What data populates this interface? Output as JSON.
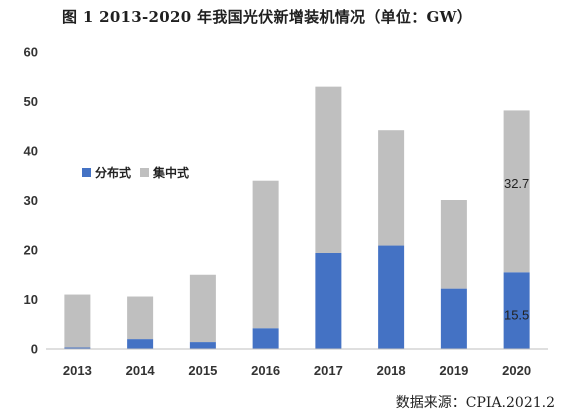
{
  "chart_data": {
    "type": "bar",
    "stacked": true,
    "title": "图 1 2013-2020 年我国光伏新增装机情况（单位：GW）",
    "xlabel": "",
    "ylabel": "",
    "categories": [
      "2013",
      "2014",
      "2015",
      "2016",
      "2017",
      "2018",
      "2019",
      "2020"
    ],
    "series": [
      {
        "name": "分布式",
        "color": "#4472C4",
        "values": [
          0.3,
          2.0,
          1.4,
          4.2,
          19.4,
          20.9,
          12.2,
          15.5
        ]
      },
      {
        "name": "集中式",
        "color": "#BFBFBF",
        "values": [
          10.7,
          8.6,
          13.6,
          29.8,
          33.6,
          23.3,
          17.9,
          32.7
        ]
      }
    ],
    "ylim": [
      0,
      60
    ],
    "yticks": [
      "0",
      "10",
      "20",
      "30",
      "40",
      "50",
      "60"
    ],
    "grid": false,
    "legend": "left",
    "data_labels": [
      "32.7",
      "15.5"
    ]
  },
  "source": "数据来源：CPIA.2021.2"
}
